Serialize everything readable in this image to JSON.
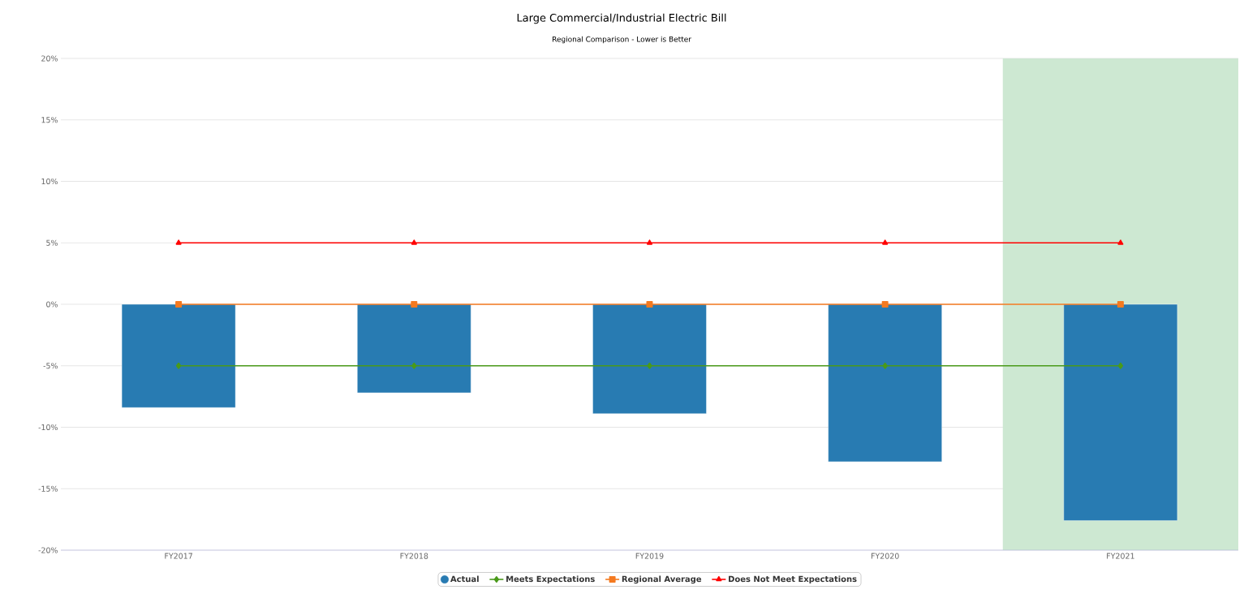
{
  "chart_data": {
    "type": "bar",
    "title": "Large Commercial/Industrial Electric Bill",
    "subtitle": "Regional Comparison - Lower is Better",
    "categories": [
      "FY2017",
      "FY2018",
      "FY2019",
      "FY2020",
      "FY2021"
    ],
    "series": [
      {
        "name": "Actual",
        "color": "#287bb2",
        "values": [
          -8.4,
          -7.2,
          -8.9,
          -12.8,
          -17.6
        ]
      },
      {
        "name": "Meets Expectations",
        "type": "line",
        "color": "#4a9a1a",
        "marker": "diamond",
        "values": [
          -5,
          -5,
          -5,
          -5,
          -5
        ]
      },
      {
        "name": "Regional Average",
        "type": "line",
        "color": "#f47a20",
        "marker": "square",
        "values": [
          0,
          0,
          0,
          0,
          0
        ]
      },
      {
        "name": "Does Not Meet Expectations",
        "type": "line",
        "color": "#ff0000",
        "marker": "triangle",
        "values": [
          5,
          5,
          5,
          5,
          5
        ]
      }
    ],
    "ylim": [
      -20,
      20
    ],
    "yticks": [
      {
        "value": -20,
        "label": "-20%"
      },
      {
        "value": -15,
        "label": "-15%"
      },
      {
        "value": -10,
        "label": "-10%"
      },
      {
        "value": -5,
        "label": "-5%"
      },
      {
        "value": 0,
        "label": "0%"
      },
      {
        "value": 5,
        "label": "5%"
      },
      {
        "value": 10,
        "label": "10%"
      },
      {
        "value": 15,
        "label": "15%"
      },
      {
        "value": 20,
        "label": "20%"
      }
    ],
    "bands": [
      {
        "axis": "x",
        "from": "FY2021",
        "to": "FY2021",
        "color": "#cde8d2"
      }
    ],
    "grid": "y",
    "legend": "bottom",
    "line_style": "solid"
  }
}
